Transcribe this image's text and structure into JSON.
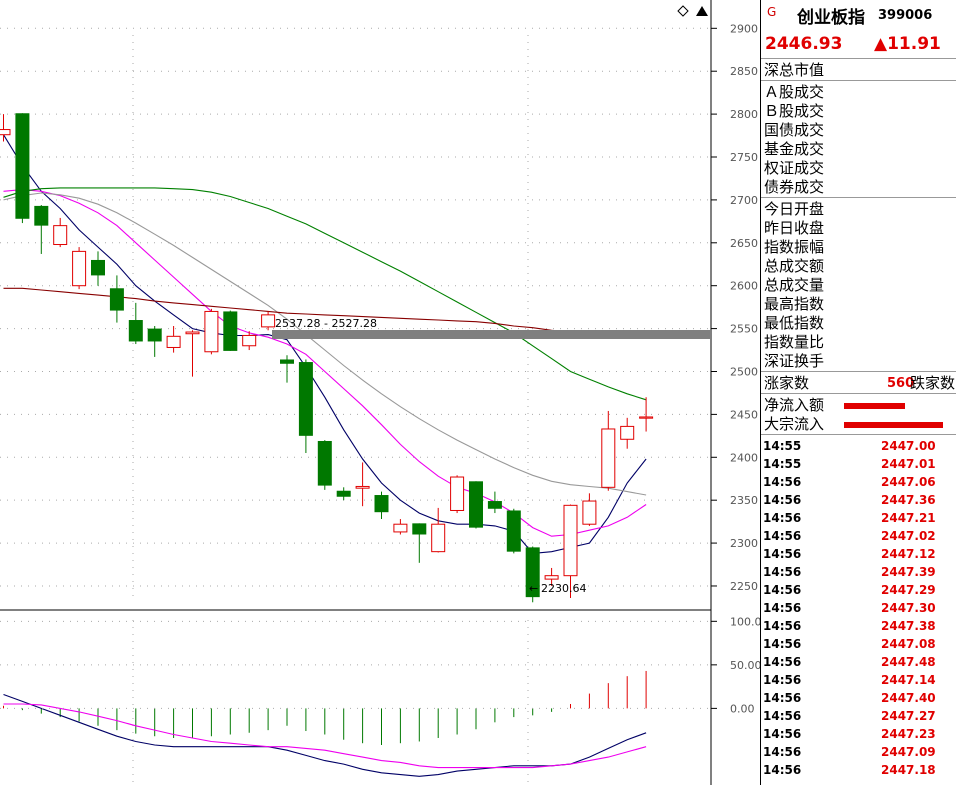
{
  "price_axis": [
    "2900",
    "2850",
    "2800",
    "2750",
    "2700",
    "2650",
    "2600",
    "2550",
    "2500",
    "2450",
    "2400",
    "2350",
    "2300",
    "2250"
  ],
  "macd_axis": [
    "100.0",
    "50.00",
    "0.00"
  ],
  "annotations": {
    "range": "2537.28 - 2527.28",
    "low": "2230.64"
  },
  "panel": {
    "badge": "G",
    "name": "创业板指",
    "code": "399006",
    "last": "2446.93",
    "change": "▲11.91",
    "market": "深总市值",
    "volumes": [
      "Ａ股成交",
      "Ｂ股成交",
      "国债成交",
      "基金成交",
      "权证成交",
      "债券成交"
    ],
    "stats": [
      "今日开盘",
      "昨日收盘",
      "指数振幅",
      "总成交额",
      "总成交量",
      "最高指数",
      "最低指数",
      "指数量比",
      "深证换手"
    ],
    "breadth": {
      "up_label": "涨家数",
      "up_count": "560",
      "down_label": "跌家数"
    },
    "flows": [
      {
        "label": "净流入额",
        "bar": 0.34
      },
      {
        "label": "大宗流入",
        "bar": 0.55
      }
    ],
    "ticks": [
      {
        "t": "14:55",
        "p": "2447.00"
      },
      {
        "t": "14:55",
        "p": "2447.01"
      },
      {
        "t": "14:56",
        "p": "2447.06"
      },
      {
        "t": "14:56",
        "p": "2447.36"
      },
      {
        "t": "14:56",
        "p": "2447.21"
      },
      {
        "t": "14:56",
        "p": "2447.02"
      },
      {
        "t": "14:56",
        "p": "2447.12"
      },
      {
        "t": "14:56",
        "p": "2447.39"
      },
      {
        "t": "14:56",
        "p": "2447.29"
      },
      {
        "t": "14:56",
        "p": "2447.30"
      },
      {
        "t": "14:56",
        "p": "2447.38"
      },
      {
        "t": "14:56",
        "p": "2447.08"
      },
      {
        "t": "14:56",
        "p": "2447.48"
      },
      {
        "t": "14:56",
        "p": "2447.14"
      },
      {
        "t": "14:56",
        "p": "2447.40"
      },
      {
        "t": "14:56",
        "p": "2447.27"
      },
      {
        "t": "14:56",
        "p": "2447.23"
      },
      {
        "t": "14:56",
        "p": "2447.09"
      },
      {
        "t": "14:56",
        "p": "2447.18"
      }
    ]
  },
  "chart_data": {
    "type": "candlestick",
    "ylim": [
      2222,
      2933
    ],
    "candles": [
      {
        "o": 2776,
        "c": 2782,
        "h": 2800,
        "l": 2768
      },
      {
        "o": 2801,
        "c": 2678,
        "h": 2801,
        "l": 2673
      },
      {
        "o": 2693,
        "c": 2670,
        "h": 2694,
        "l": 2637
      },
      {
        "o": 2648,
        "c": 2670,
        "h": 2679,
        "l": 2645
      },
      {
        "o": 2600,
        "c": 2640,
        "h": 2645,
        "l": 2596
      },
      {
        "o": 2630,
        "c": 2612,
        "h": 2640,
        "l": 2600
      },
      {
        "o": 2597,
        "c": 2571,
        "h": 2612,
        "l": 2557
      },
      {
        "o": 2560,
        "c": 2535,
        "h": 2580,
        "l": 2532
      },
      {
        "o": 2550,
        "c": 2535,
        "h": 2553,
        "l": 2517
      },
      {
        "o": 2528,
        "c": 2541,
        "h": 2553,
        "l": 2522
      },
      {
        "o": 2544,
        "c": 2546,
        "h": 2548,
        "l": 2494
      },
      {
        "o": 2523,
        "c": 2570,
        "h": 2573,
        "l": 2520
      },
      {
        "o": 2570,
        "c": 2524,
        "h": 2571,
        "l": 2524
      },
      {
        "o": 2530,
        "c": 2542,
        "h": 2547,
        "l": 2525
      },
      {
        "o": 2552,
        "c": 2566,
        "h": 2570,
        "l": 2548
      },
      {
        "o": 2514,
        "c": 2509,
        "h": 2519,
        "l": 2487
      },
      {
        "o": 2511,
        "c": 2425,
        "h": 2514,
        "l": 2405
      },
      {
        "o": 2419,
        "c": 2367,
        "h": 2420,
        "l": 2362
      },
      {
        "o": 2361,
        "c": 2354,
        "h": 2365,
        "l": 2350
      },
      {
        "o": 2364,
        "c": 2366,
        "h": 2394,
        "l": 2343
      },
      {
        "o": 2356,
        "c": 2336,
        "h": 2360,
        "l": 2328
      },
      {
        "o": 2313,
        "c": 2322,
        "h": 2328,
        "l": 2310
      },
      {
        "o": 2323,
        "c": 2310,
        "h": 2323,
        "l": 2277
      },
      {
        "o": 2290,
        "c": 2322,
        "h": 2341,
        "l": 2289
      },
      {
        "o": 2338,
        "c": 2377,
        "h": 2379,
        "l": 2335
      },
      {
        "o": 2372,
        "c": 2318,
        "h": 2372,
        "l": 2317
      },
      {
        "o": 2349,
        "c": 2340,
        "h": 2360,
        "l": 2335
      },
      {
        "o": 2338,
        "c": 2290,
        "h": 2340,
        "l": 2288
      },
      {
        "o": 2295,
        "c": 2237,
        "h": 2296,
        "l": 2231
      },
      {
        "o": 2258,
        "c": 2262,
        "h": 2271,
        "l": 2250
      },
      {
        "o": 2262,
        "c": 2344,
        "h": 2345,
        "l": 2236
      },
      {
        "o": 2322,
        "c": 2349,
        "h": 2358,
        "l": 2320
      },
      {
        "o": 2365,
        "c": 2433,
        "h": 2454,
        "l": 2361
      },
      {
        "o": 2421,
        "c": 2436,
        "h": 2446,
        "l": 2410
      },
      {
        "o": 2447,
        "c": 2447,
        "h": 2470,
        "l": 2430
      }
    ],
    "ma": [
      {
        "color": "#000066",
        "values": [
          2776,
          2740,
          2710,
          2690,
          2665,
          2645,
          2625,
          2600,
          2582,
          2566,
          2550,
          2545,
          2542,
          2542,
          2543,
          2537,
          2505,
          2470,
          2432,
          2398,
          2370,
          2350,
          2335,
          2326,
          2322,
          2322,
          2320,
          2314,
          2288,
          2290,
          2295,
          2300,
          2330,
          2370,
          2398
        ]
      },
      {
        "color": "#ee00ee",
        "values": [
          2710,
          2712,
          2710,
          2705,
          2696,
          2685,
          2670,
          2650,
          2630,
          2610,
          2590,
          2570,
          2553,
          2545,
          2540,
          2532,
          2520,
          2500,
          2480,
          2460,
          2438,
          2415,
          2395,
          2378,
          2365,
          2358,
          2348,
          2335,
          2318,
          2308,
          2310,
          2315,
          2320,
          2330,
          2345
        ]
      },
      {
        "color": "#999999",
        "values": [
          2700,
          2705,
          2708,
          2706,
          2702,
          2695,
          2685,
          2673,
          2660,
          2647,
          2633,
          2619,
          2605,
          2591,
          2577,
          2561,
          2543,
          2525,
          2507,
          2490,
          2474,
          2459,
          2445,
          2432,
          2420,
          2409,
          2398,
          2388,
          2379,
          2372,
          2368,
          2366,
          2364,
          2360,
          2356
        ]
      },
      {
        "color": "#008000",
        "values": [
          2703,
          2710,
          2713,
          2714,
          2714,
          2714,
          2714,
          2714,
          2714,
          2713,
          2712,
          2709,
          2704,
          2697,
          2690,
          2681,
          2672,
          2661,
          2650,
          2639,
          2628,
          2617,
          2605,
          2593,
          2581,
          2569,
          2557,
          2545,
          2530,
          2515,
          2500,
          2491,
          2482,
          2474,
          2467
        ]
      },
      {
        "color": "#880000",
        "values": [
          2597,
          2597,
          2595,
          2593,
          2591,
          2589,
          2587,
          2585,
          2582,
          2580,
          2578,
          2576,
          2574,
          2572,
          2570,
          2568,
          2567,
          2566,
          2565,
          2564,
          2563,
          2562,
          2561,
          2560,
          2559,
          2558,
          2556,
          2553,
          2551,
          2548,
          2546,
          2546,
          2546,
          2546,
          2546
        ]
      }
    ],
    "macd_ylim": [
      -88,
      113
    ],
    "macd_hist": [
      3,
      -2,
      -6,
      -10,
      -15,
      -20,
      -25,
      -29,
      -32,
      -34,
      -34,
      -32,
      -30,
      -28,
      -25,
      -20,
      -26,
      -30,
      -36,
      -40,
      -42,
      -40,
      -38,
      -34,
      -30,
      -24,
      -16,
      -10,
      -8,
      -4,
      5,
      17,
      29,
      37,
      43
    ],
    "macd_dif": [
      16,
      8,
      0,
      -8,
      -16,
      -24,
      -32,
      -38,
      -42,
      -44,
      -44,
      -44,
      -44,
      -44,
      -44,
      -48,
      -54,
      -60,
      -64,
      -70,
      -74,
      -76,
      -78,
      -76,
      -72,
      -70,
      -68,
      -66,
      -66,
      -66,
      -64,
      -56,
      -46,
      -36,
      -28
    ],
    "macd_dea": [
      5,
      5,
      4,
      0,
      -4,
      -9,
      -14,
      -20,
      -25,
      -30,
      -34,
      -38,
      -40,
      -42,
      -44,
      -44,
      -46,
      -48,
      -52,
      -56,
      -60,
      -62,
      -66,
      -68,
      -68,
      -68,
      -68,
      -68,
      -68,
      -66,
      -64,
      -60,
      -56,
      -50,
      -44
    ]
  }
}
